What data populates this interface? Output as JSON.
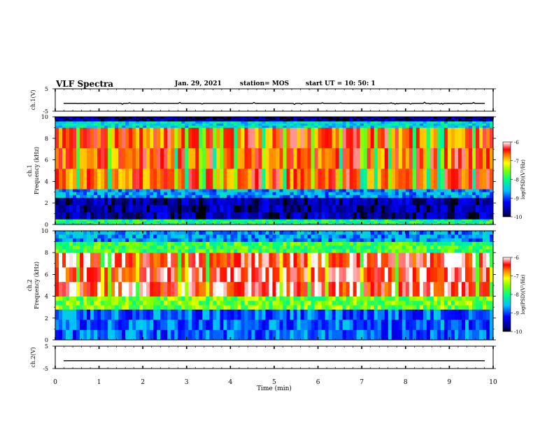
{
  "header": {
    "title": "VLF Spectra",
    "date": "Jan. 29, 2021",
    "station": "station= MOS",
    "start": "start  UT =   10: 50: 1"
  },
  "chart_data": [
    {
      "type": "line",
      "title": "",
      "ylabel": "ch.1(V)",
      "xlabel": "",
      "ylim": [
        -5,
        5
      ],
      "yticks": [
        "5",
        "-5"
      ],
      "series": [
        {
          "values": [
            -1.5
          ]
        }
      ]
    },
    {
      "type": "heatmap",
      "ylabel": "ch.1\nFrequency (kHz)",
      "ylim": [
        0,
        10
      ],
      "yticks": [
        "0",
        "2",
        "4",
        "6",
        "8",
        "10"
      ],
      "colorbar": {
        "label": "log(PSD)(V²/Hz)",
        "range": [
          -10,
          -6
        ],
        "ticks": [
          "-6",
          "-7",
          "-8",
          "-9",
          "-10"
        ]
      },
      "bands": [
        {
          "from_khz": 0.0,
          "to_khz": 0.5,
          "log_psd": -8.0
        },
        {
          "from_khz": 0.5,
          "to_khz": 2.5,
          "log_psd": -9.6
        },
        {
          "from_khz": 2.5,
          "to_khz": 3.3,
          "log_psd": -8.7
        },
        {
          "from_khz": 3.3,
          "to_khz": 9.0,
          "log_psd": -6.6
        },
        {
          "from_khz": 9.0,
          "to_khz": 9.6,
          "log_psd": -8.4
        },
        {
          "from_khz": 9.6,
          "to_khz": 10.0,
          "log_psd": -9.7
        }
      ]
    },
    {
      "type": "heatmap",
      "ylabel": "ch.2\nFrequency (kHz)",
      "ylim": [
        0,
        10
      ],
      "yticks": [
        "0",
        "2",
        "4",
        "6",
        "8",
        "10"
      ],
      "colorbar": {
        "label": "log(PSD)(V²/Hz)",
        "range": [
          -10,
          -6
        ],
        "ticks": [
          "-6",
          "-7",
          "-8",
          "-9",
          "-10"
        ]
      },
      "bands": [
        {
          "from_khz": 0.0,
          "to_khz": 2.8,
          "log_psd": -8.9
        },
        {
          "from_khz": 2.8,
          "to_khz": 4.0,
          "log_psd": -7.6
        },
        {
          "from_khz": 4.0,
          "to_khz": 8.0,
          "log_psd": -6.3
        },
        {
          "from_khz": 8.0,
          "to_khz": 9.0,
          "log_psd": -7.8
        },
        {
          "from_khz": 9.0,
          "to_khz": 10.0,
          "log_psd": -8.7
        }
      ]
    },
    {
      "type": "line",
      "ylabel": "ch.2(V)",
      "xlabel": "Time  (min)",
      "ylim": [
        -5,
        5
      ],
      "yticks": [
        "5",
        "-5"
      ],
      "xlim": [
        0,
        10
      ],
      "xticks": [
        "0",
        "1",
        "2",
        "3",
        "4",
        "5",
        "6",
        "7",
        "8",
        "9",
        "10"
      ],
      "series": [
        {
          "values": [
            -1.5
          ]
        }
      ]
    }
  ]
}
